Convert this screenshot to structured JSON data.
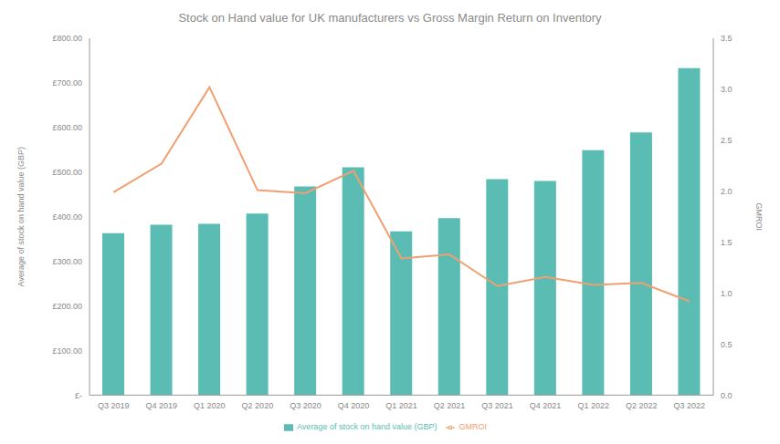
{
  "chart_data": {
    "type": "bar",
    "title": "Stock on Hand value for UK manufacturers vs Gross Margin Return on Inventory",
    "y_label": "Average of stock on hand value (GBP)",
    "y2_label": "GMROI",
    "categories": [
      "Q3 2019",
      "Q4 2019",
      "Q1 2020",
      "Q2 2020",
      "Q3 2020",
      "Q4 2020",
      "Q1 2021",
      "Q2 2021",
      "Q3 2021",
      "Q4 2021",
      "Q1 2022",
      "Q2 2022",
      "Q3 2022"
    ],
    "series": [
      {
        "name": "Average of stock on hand value (GBP)",
        "type": "bar",
        "color": "#5bbcb3",
        "values": [
          363,
          382,
          384,
          407,
          468,
          511,
          367,
          397,
          484,
          480,
          549,
          589,
          733
        ]
      },
      {
        "name": "GMROI",
        "type": "line",
        "axis": "y2",
        "color": "#f0a070",
        "values": [
          1.99,
          2.27,
          3.02,
          2.01,
          1.98,
          2.2,
          1.34,
          1.38,
          1.07,
          1.16,
          1.08,
          1.1,
          0.92
        ]
      }
    ],
    "ylim": [
      0,
      800
    ],
    "yticks": [
      {
        "value": 0,
        "label": "£-"
      },
      {
        "value": 100,
        "label": "£100.00"
      },
      {
        "value": 200,
        "label": "£200.00"
      },
      {
        "value": 300,
        "label": "£300.00"
      },
      {
        "value": 400,
        "label": "£400.00"
      },
      {
        "value": 500,
        "label": "£500.00"
      },
      {
        "value": 600,
        "label": "£600.00"
      },
      {
        "value": 700,
        "label": "£700.00"
      },
      {
        "value": 800,
        "label": "£800.00"
      }
    ],
    "y2lim": [
      0,
      3.5
    ],
    "y2ticks": [
      {
        "value": 0,
        "label": "0.0"
      },
      {
        "value": 0.5,
        "label": "0.5"
      },
      {
        "value": 1,
        "label": "1.0"
      },
      {
        "value": 1.5,
        "label": "1.5"
      },
      {
        "value": 2,
        "label": "2.0"
      },
      {
        "value": 2.5,
        "label": "2.5"
      },
      {
        "value": 3,
        "label": "3.0"
      },
      {
        "value": 3.5,
        "label": "3.5"
      }
    ],
    "grid": false,
    "legend": "bottom"
  }
}
